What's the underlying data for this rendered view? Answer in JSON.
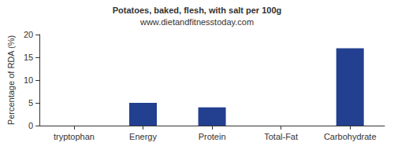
{
  "chart_data": {
    "type": "bar",
    "title": "Potatoes, baked, flesh, with salt per 100g",
    "subtitle": "www.dietandfitnesstoday.com",
    "y_label": "Percentage of RDA (%)",
    "categories": [
      "tryptophan",
      "Energy",
      "Protein",
      "Total-Fat",
      "Carbohydrate"
    ],
    "values": [
      0,
      5,
      4,
      0,
      17
    ],
    "color": "#233f8f",
    "ylim": [
      0,
      20
    ],
    "yticks": [
      0,
      5,
      10,
      15,
      20
    ],
    "grid": false
  }
}
